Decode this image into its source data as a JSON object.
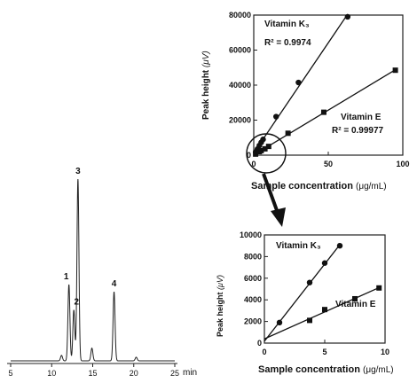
{
  "chart_data": [
    {
      "type": "line",
      "kind": "chromatogram",
      "x_ticks": [
        "5",
        "10",
        "15",
        "20",
        "25"
      ],
      "x_unit": "min",
      "xlim": [
        5,
        25
      ],
      "peaks": [
        {
          "label": "1",
          "time": 12.1,
          "height": 0.42
        },
        {
          "label": "2",
          "time": 12.7,
          "height": 0.28
        },
        {
          "label": "3",
          "time": 13.2,
          "height": 1.0
        },
        {
          "label": "4",
          "time": 17.6,
          "height": 0.38
        }
      ],
      "minor_peaks": [
        {
          "time": 11.2,
          "height": 0.03
        },
        {
          "time": 14.9,
          "height": 0.07
        },
        {
          "time": 20.3,
          "height": 0.02
        }
      ]
    },
    {
      "type": "scatter",
      "xlabel_main": "Sample concentration",
      "xlabel_unit": "(μg/mL)",
      "ylabel_main": "Peak height",
      "ylabel_unit": "(μV)",
      "xlim": [
        0,
        100
      ],
      "ylim": [
        0,
        80000
      ],
      "x_ticks": [
        "0",
        "50",
        "100"
      ],
      "y_ticks": [
        "0",
        "20000",
        "40000",
        "60000",
        "80000"
      ],
      "series": [
        {
          "name": "Vitamin K₃",
          "marker": "circle",
          "r2": "R² = 0.9974",
          "x": [
            1.25,
            2.5,
            3.75,
            5,
            6.25,
            15,
            30,
            63
          ],
          "y": [
            1800,
            3500,
            5500,
            7300,
            9000,
            22000,
            41500,
            79000
          ]
        },
        {
          "name": "Vitamin E",
          "marker": "square",
          "r2": "R² = 0.99977",
          "x": [
            1.25,
            3.75,
            5,
            7.5,
            10,
            23,
            47,
            95
          ],
          "y": [
            600,
            2000,
            2600,
            3600,
            5000,
            12500,
            24500,
            48500
          ]
        }
      ]
    },
    {
      "type": "scatter",
      "xlabel_main": "Sample concentration",
      "xlabel_unit": "(μg/mL)",
      "ylabel_main": "Peak height",
      "ylabel_unit": "(μV)",
      "xlim": [
        0,
        10
      ],
      "ylim": [
        0,
        10000
      ],
      "x_ticks": [
        "0",
        "5",
        "10"
      ],
      "y_ticks": [
        "0",
        "2000",
        "4000",
        "6000",
        "8000",
        "10000"
      ],
      "series": [
        {
          "name": "Vitamin K₃",
          "marker": "circle",
          "x": [
            1.25,
            3.75,
            5,
            6.25
          ],
          "y": [
            1900,
            5600,
            7400,
            9000
          ]
        },
        {
          "name": "Vitamin E",
          "marker": "square",
          "x": [
            3.75,
            5,
            7.5,
            9.5
          ],
          "y": [
            2100,
            3100,
            4100,
            5100
          ]
        }
      ]
    }
  ]
}
